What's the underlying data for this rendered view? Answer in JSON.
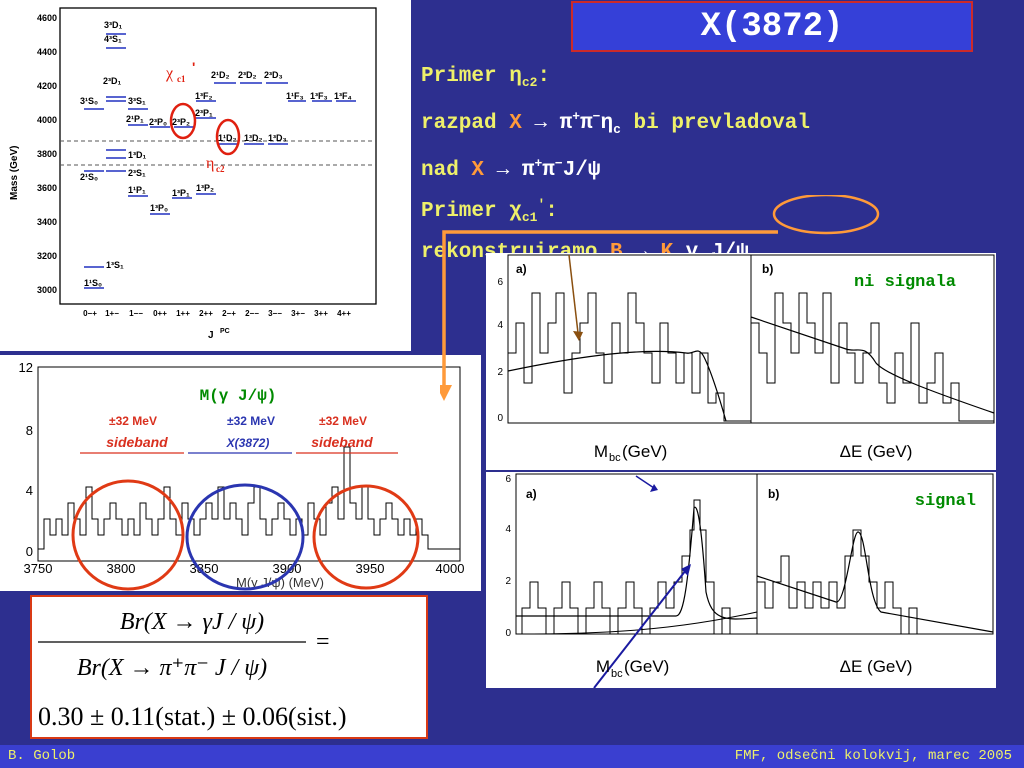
{
  "title": "X(3872)",
  "text_lines": {
    "l1_a": "Primer ",
    "l1_sym": "η",
    "l1_sub": "c2",
    "l1_b": ":",
    "l2_a": "razpad ",
    "l2_x": "X",
    "l2_arrow": " → ",
    "l2_pi": "π",
    "l2_sup1": "+",
    "l2_pi2": "π",
    "l2_sup2": "−",
    "l2_eta": "η",
    "l2_sub": "c",
    "l2_b": " bi prevladoval",
    "l3_a": "nad ",
    "l3_x": "X",
    "l3_arrow": " → ",
    "l3_pi": "π",
    "l3_sup1": "+",
    "l3_pi2": "π",
    "l3_sup2": "−",
    "l3_b": "J/ψ",
    "l4_a": "Primer ",
    "l4_sym": "χ",
    "l4_sub": "c1",
    "l4_prime": "'",
    "l4_b": ":",
    "l5_a": "rekonstruiramo ",
    "l5_b": "B",
    "l5_arrow": " → ",
    "l5_k": "K",
    "l5_g": " γ J/ψ"
  },
  "spectrum": {
    "ylabel": "Mass (GeV)",
    "xlabel": "J",
    "xlabel_sup": "PC",
    "yticks": [
      "4600",
      "4400",
      "4200",
      "4000",
      "3800",
      "3600",
      "3400",
      "3200",
      "3000"
    ],
    "xticks": [
      "0−+",
      "1+−",
      "1−−",
      "0++",
      "1++",
      "2++",
      "2−+",
      "2−−",
      "3−−",
      "3+−",
      "3++",
      "4++"
    ],
    "labels": {
      "s33d1": "3³D₁",
      "s43s1": "4³S₁",
      "s23d1": "2³D₁",
      "s31s0": "3¹S₀",
      "s33s1": "3³S₁",
      "s21d2": "2¹D₂",
      "s23d2": "2³D₂",
      "s23d3": "2³D₃",
      "s11f3": "1¹F₃",
      "s13f3": "1³F₃",
      "s13f4": "1³F₄",
      "s13f2": "1³F₂",
      "s21p1": "2¹P₁",
      "s23p0": "2³P₀",
      "s23p2": "2³P₂",
      "s23p1b": "2³P₁",
      "s11d2": "1¹D₂",
      "s13d2": "1³D₂",
      "s13d3": "1³D₃",
      "s13d1": "1³D₁",
      "s21s0": "2¹S₀",
      "s23s1": "2³S₁",
      "s11p1": "1¹P₁",
      "s13p1": "1³P₁",
      "s13p2": "1³P₂",
      "s13p0": "1³P₀",
      "s13s1": "1³S₁",
      "s11s0": "1¹S₀"
    },
    "chi_label": "χ",
    "chi_sub": "c1",
    "chi_prime": "'",
    "eta_label": "η",
    "eta_sub": "c2"
  },
  "mass_hist": {
    "title": "M(γ J/ψ)",
    "band_left": "±32 MeV",
    "band_mid": "±32 MeV",
    "band_right": "±32 MeV",
    "sideband_left": "sideband",
    "signal_label": "X(3872)",
    "sideband_right": "sideband",
    "xlabel": "M(γ J/ψ) (MeV)",
    "xticks": [
      "3750",
      "3800",
      "3850",
      "3900",
      "3950",
      "4000"
    ],
    "yticks": [
      "12",
      "8",
      "4",
      "0"
    ]
  },
  "top_panels": {
    "label_a": "a)",
    "label_b": "b)",
    "note": "ni signala",
    "yticks": [
      "6",
      "4",
      "2",
      "0"
    ],
    "xlabel_a": "M",
    "xlabel_a_sub": "bc",
    "xlabel_a_unit": " (GeV)",
    "xlabel_b": "ΔE (GeV)"
  },
  "bottom_panels": {
    "label_a": "a)",
    "label_b": "b)",
    "note": "signal",
    "yticks": [
      "6",
      "4",
      "2",
      "0"
    ],
    "xlabel_a": "M",
    "xlabel_a_sub": "bc",
    "xlabel_a_unit": " (GeV)",
    "xlabel_b": "ΔE (GeV)"
  },
  "formula": {
    "num": "Br(X → γJ / ψ)",
    "den": "Br(X → π⁺π⁻ J / ψ)",
    "eq": "=",
    "result": "0.30 ± 0.11(stat.) ± 0.06(sist.)"
  },
  "footer": {
    "left": "B. Golob",
    "right": "FMF, odsečni kolokvij, marec 2005"
  },
  "colors": {
    "background": "#2d2f8f",
    "title_box": "#3540d8",
    "text_yellow": "#eef06a",
    "text_orange": "#ff9a3a",
    "red": "#d9301f",
    "blue": "#2a35b0",
    "green": "#008a00"
  }
}
